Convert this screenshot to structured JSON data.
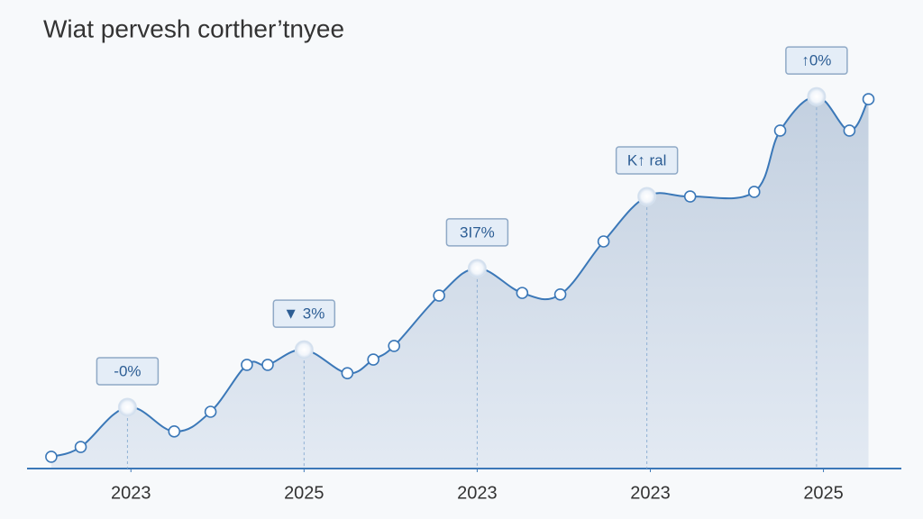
{
  "chart_data": {
    "type": "line",
    "title": "Wiat pervesh corther’tnyee",
    "x": [
      0.54,
      0.71,
      0.98,
      1.25,
      1.46,
      1.67,
      1.79,
      2.0,
      2.25,
      2.4,
      2.52,
      2.78,
      3.0,
      3.26,
      3.48,
      3.73,
      3.98,
      4.23,
      4.6,
      4.75,
      4.96,
      5.15,
      5.26
    ],
    "values": [
      3.1,
      5.7,
      16.2,
      9.8,
      15,
      27.4,
      27.4,
      31.4,
      25.2,
      28.8,
      32.4,
      45.7,
      52.9,
      46.4,
      46,
      60,
      71.9,
      71.9,
      73.1,
      89.3,
      98.3,
      89.3,
      97.6
    ],
    "annotations": [
      null,
      null,
      "-0%",
      null,
      null,
      null,
      null,
      "▼ 3%",
      null,
      null,
      null,
      null,
      "3I7%",
      null,
      null,
      null,
      "K↑ ral",
      null,
      null,
      null,
      "↑0%",
      null,
      null
    ],
    "color": "#3b78b8",
    "xlim": [
      0.4,
      5.45
    ],
    "ylim": [
      0,
      100
    ],
    "xticks": [
      {
        "value": 1,
        "label": "2023"
      },
      {
        "value": 2,
        "label": "2025"
      },
      {
        "value": 3,
        "label": "2023"
      },
      {
        "value": 4,
        "label": "2023"
      },
      {
        "value": 5,
        "label": "2025"
      }
    ]
  }
}
